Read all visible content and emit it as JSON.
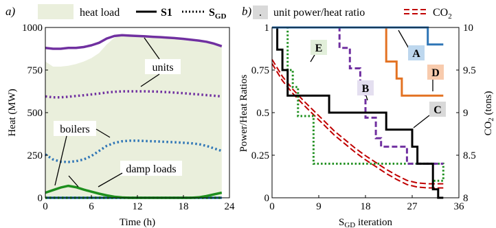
{
  "chart_data": [
    {
      "panel": "a)",
      "type": "area",
      "title": "",
      "xlabel": "Time (h)",
      "ylabel": "Heat (MW)",
      "xlim": [
        0,
        24
      ],
      "ylim": [
        0,
        1000
      ],
      "x_ticks": [
        0,
        6,
        12,
        18,
        24
      ],
      "y_ticks": [
        0,
        250,
        500,
        750,
        1000
      ],
      "legend": {
        "position": "top",
        "entries": [
          {
            "label": "heat load",
            "style": "area"
          },
          {
            "label": "S1",
            "style": "solid"
          },
          {
            "label": "S",
            "sub": "GD",
            "style": "dotted"
          }
        ]
      },
      "annotations": [
        "units",
        "boilers",
        "damp loads"
      ],
      "x": [
        0,
        1,
        2,
        3,
        4,
        5,
        6,
        7,
        8,
        9,
        10,
        11,
        12,
        13,
        14,
        15,
        16,
        17,
        18,
        19,
        20,
        21,
        22,
        23
      ],
      "heat_load": [
        800,
        770,
        770,
        775,
        785,
        800,
        820,
        850,
        900,
        940,
        960,
        960,
        950,
        950,
        945,
        940,
        935,
        930,
        925,
        920,
        915,
        910,
        900,
        890
      ],
      "series": [
        {
          "group": "units",
          "strategy": "S1",
          "color": "#7030a0",
          "values": [
            880,
            875,
            875,
            880,
            880,
            885,
            895,
            910,
            935,
            950,
            955,
            952,
            950,
            948,
            945,
            943,
            940,
            937,
            933,
            928,
            923,
            916,
            905,
            890
          ]
        },
        {
          "group": "units",
          "strategy": "SGD",
          "color": "#7030a0",
          "values": [
            595,
            590,
            590,
            593,
            598,
            602,
            607,
            612,
            618,
            622,
            625,
            625,
            625,
            625,
            624,
            622,
            620,
            617,
            614,
            610,
            607,
            603,
            599,
            595
          ]
        },
        {
          "group": "boilers",
          "strategy": "S1",
          "color": "#2e75b6",
          "values": [
            0,
            0,
            0,
            0,
            0,
            0,
            0,
            0,
            0,
            0,
            0,
            0,
            0,
            0,
            0,
            0,
            0,
            0,
            0,
            0,
            0,
            0,
            0,
            0
          ]
        },
        {
          "group": "boilers",
          "strategy": "SGD",
          "color": "#2e75b6",
          "values": [
            255,
            225,
            212,
            210,
            215,
            225,
            245,
            275,
            305,
            322,
            332,
            335,
            335,
            333,
            332,
            330,
            328,
            326,
            323,
            320,
            315,
            305,
            290,
            275
          ]
        },
        {
          "group": "damp loads",
          "strategy": "S1",
          "color": "#1e8f1e",
          "values": [
            30,
            45,
            60,
            70,
            62,
            48,
            36,
            24,
            14,
            6,
            2,
            0,
            0,
            0,
            0,
            0,
            0,
            0,
            0,
            0,
            3,
            10,
            20,
            30
          ]
        },
        {
          "group": "damp loads",
          "strategy": "SGD",
          "color": "#1e8f1e",
          "values": [
            0,
            0,
            0,
            0,
            0,
            0,
            0,
            0,
            0,
            0,
            0,
            0,
            0,
            0,
            0,
            0,
            0,
            0,
            0,
            0,
            0,
            0,
            0,
            0
          ]
        }
      ]
    },
    {
      "panel": "b)",
      "type": "line",
      "title": "",
      "xlabel": "S",
      "xlabel_sub": "GD",
      "xlabel_rest": " iteration",
      "ylabel": "Power/Heat Ratios",
      "y2label": "CO",
      "y2label_sub": "2",
      "y2label_rest": " (tons)",
      "xlim": [
        0,
        36
      ],
      "ylim": [
        0,
        1
      ],
      "y2lim": [
        8,
        10
      ],
      "x_ticks": [
        0,
        9,
        18,
        27,
        36
      ],
      "x_tick_labels": [
        "0",
        "9",
        "18",
        "27",
        "36"
      ],
      "y_ticks": [
        0,
        0.25,
        0.5,
        0.75,
        1
      ],
      "y_tick_labels": [
        "0",
        "0.25",
        "0.5",
        "0.75",
        "1"
      ],
      "y2_ticks": [
        8,
        8.5,
        9,
        9.5,
        10
      ],
      "y2_tick_labels": [
        "8",
        "8.5",
        "9",
        "9.5",
        "10"
      ],
      "legend": {
        "position": "top",
        "entries": [
          {
            "label": ".",
            "style": "box"
          },
          {
            "label": "unit power/heat ratio",
            "style": "text"
          },
          {
            "label": "CO",
            "sub": "2",
            "style": "double-dashed"
          }
        ]
      },
      "series": [
        {
          "name": "A",
          "color": "#2e75b6",
          "dash": "solid",
          "x": [
            0,
            30,
            30,
            33
          ],
          "y": [
            1,
            1,
            0.9,
            0.9
          ]
        },
        {
          "name": "B",
          "color": "#7030a0",
          "dash": "dashed",
          "x": [
            0,
            13,
            13,
            15,
            15,
            17,
            17,
            18,
            18,
            20,
            20,
            21,
            21,
            26,
            26,
            33
          ],
          "y": [
            1,
            1,
            0.88,
            0.88,
            0.76,
            0.76,
            0.62,
            0.62,
            0.47,
            0.47,
            0.35,
            0.35,
            0.3,
            0.3,
            0.2,
            0.2
          ]
        },
        {
          "name": "C",
          "color": "#000000",
          "dash": "solid",
          "x": [
            0,
            1,
            1,
            2,
            2,
            3,
            3,
            11,
            11,
            22,
            22,
            25,
            25,
            27,
            27,
            28,
            28,
            31,
            31,
            32,
            32,
            33
          ],
          "y": [
            1,
            1,
            0.87,
            0.87,
            0.75,
            0.75,
            0.6,
            0.6,
            0.5,
            0.5,
            0.4,
            0.4,
            0.4,
            0.4,
            0.3,
            0.3,
            0.2,
            0.2,
            0.05,
            0.05,
            0,
            0
          ]
        },
        {
          "name": "D",
          "color": "#e37222",
          "dash": "solid",
          "x": [
            0,
            22,
            22,
            24,
            24,
            25,
            25,
            33
          ],
          "y": [
            1,
            1,
            0.8,
            0.8,
            0.7,
            0.7,
            0.6,
            0.6
          ]
        },
        {
          "name": "E",
          "color": "#1e8f1e",
          "dash": "dotted",
          "x": [
            0,
            3,
            3,
            4,
            4,
            5,
            5,
            8,
            8,
            12,
            12,
            33,
            33,
            31
          ],
          "y": [
            1,
            1,
            0.75,
            0.75,
            0.65,
            0.65,
            0.48,
            0.48,
            0.2,
            0.2,
            0.2,
            0.2,
            0.1,
            0.1
          ]
        }
      ],
      "co2_series": {
        "name": "CO2",
        "color": "#c00000",
        "x": [
          0,
          2,
          4,
          6,
          8,
          10,
          12,
          14,
          16,
          18,
          20,
          22,
          24,
          26,
          28,
          30,
          32,
          33
        ],
        "y": [
          9.6,
          9.4,
          9.25,
          9.12,
          9.0,
          8.88,
          8.76,
          8.66,
          8.56,
          8.47,
          8.39,
          8.31,
          8.24,
          8.18,
          8.15,
          8.14,
          8.14,
          8.14
        ]
      },
      "labels": [
        {
          "text": "A",
          "bg": "#bdd7ee"
        },
        {
          "text": "B",
          "bg": "#e4dff0"
        },
        {
          "text": "C",
          "bg": "#d9d9d9"
        },
        {
          "text": "D",
          "bg": "#f8cbad"
        },
        {
          "text": "E",
          "bg": "#e2efda"
        }
      ]
    }
  ]
}
